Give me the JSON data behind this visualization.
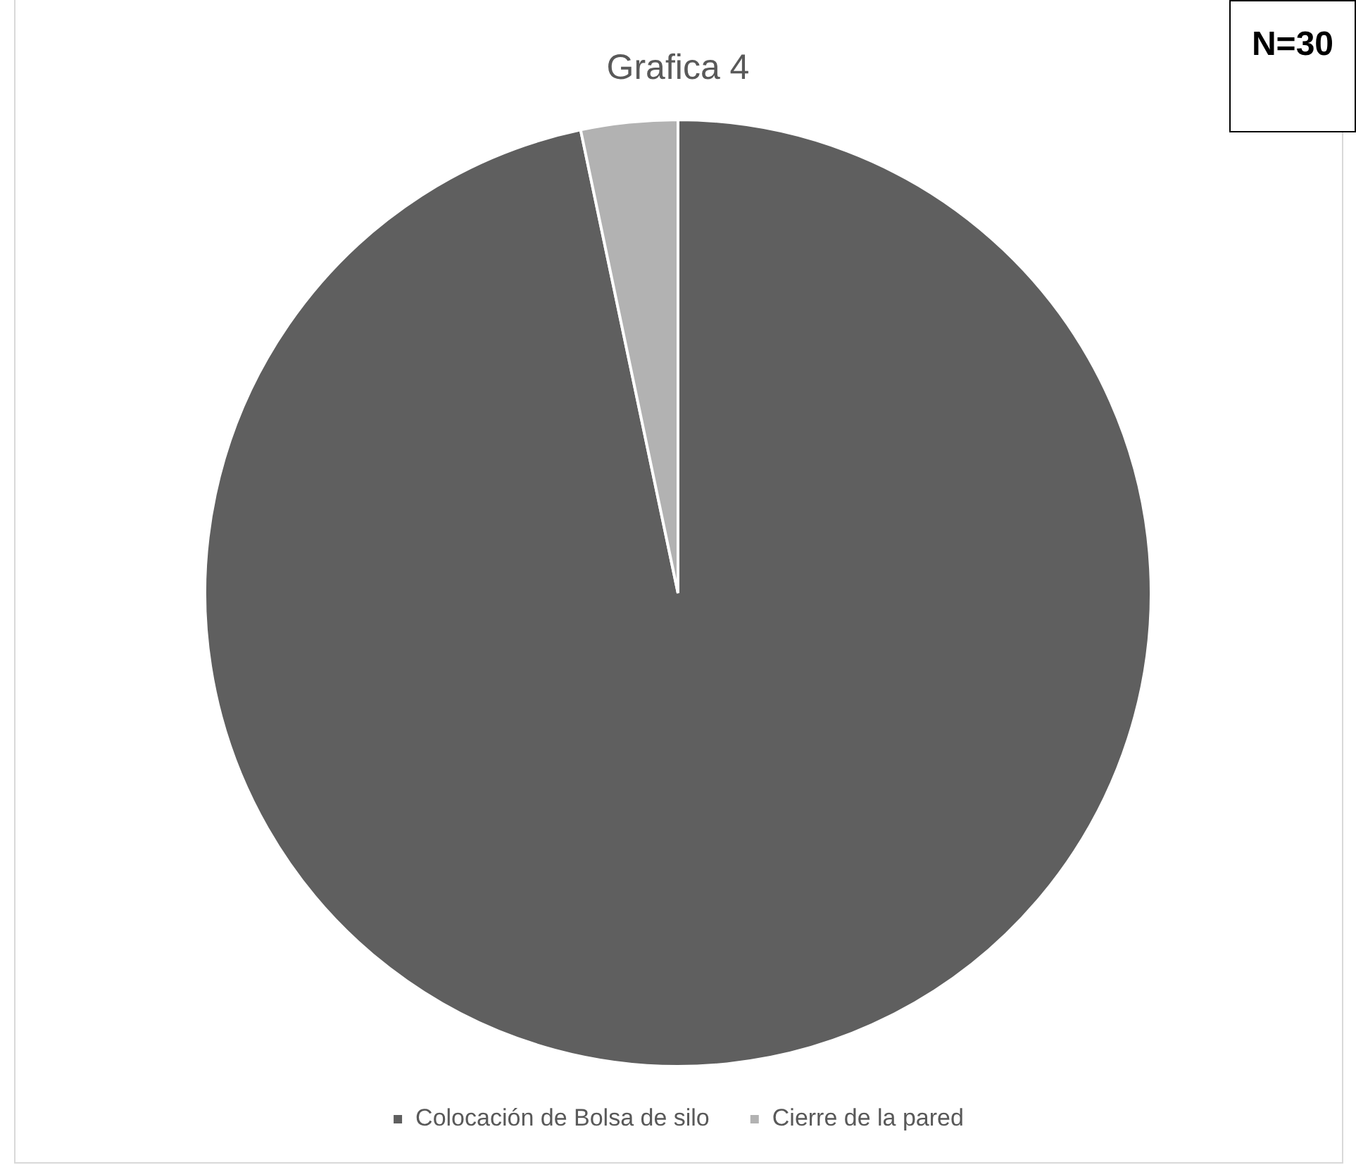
{
  "chart_data": {
    "type": "pie",
    "title": "Grafica 4",
    "categories": [
      "Colocación de Bolsa de silo",
      "Cierre de la pared"
    ],
    "values": [
      96.7,
      3.3
    ],
    "colors": [
      "#5f5f5f",
      "#b2b2b2"
    ],
    "legend": "bottom",
    "annotations": [
      "N=30"
    ]
  }
}
